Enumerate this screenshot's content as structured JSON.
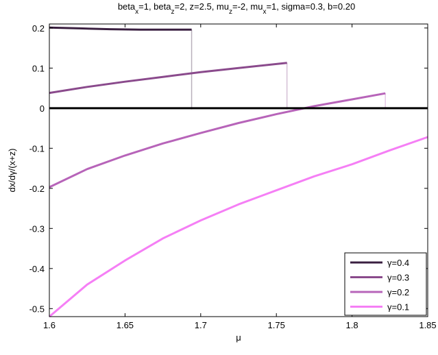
{
  "chart_data": {
    "type": "line",
    "title": "beta_x=1, beta_z=2, z=2.5, mu_z=-2, mu_x=1, sigma=0.3, b=0.20",
    "title_parts": [
      {
        "t": "beta",
        "sub": "x"
      },
      {
        "t": "=1, beta",
        "sub": "z"
      },
      {
        "t": "=2, z=2.5, mu",
        "sub": "z"
      },
      {
        "t": "=-2, mu",
        "sub": "x"
      },
      {
        "t": "=1, sigma=0.3, b=0.20",
        "sub": ""
      }
    ],
    "xlabel": "μ",
    "ylabel": "dx/dγ/(x+z)",
    "xlim": [
      1.6,
      1.85
    ],
    "ylim": [
      -0.52,
      0.21
    ],
    "x_ticks": [
      "1.6",
      "1.65",
      "1.7",
      "1.75",
      "1.8",
      "1.85"
    ],
    "y_ticks": [
      "0.2",
      "0.1",
      "0",
      "-0.1",
      "-0.2",
      "-0.3",
      "-0.4",
      "-0.5"
    ],
    "grid": false,
    "legend_position": "bottom-right",
    "zero_line": 0,
    "series": [
      {
        "name": "γ=0.4",
        "color": "#3a1f40",
        "x": [
          1.6,
          1.62,
          1.64,
          1.66,
          1.68,
          1.694
        ],
        "y": [
          0.201,
          0.199,
          0.197,
          0.196,
          0.196,
          0.196
        ],
        "drop_to": -0.003
      },
      {
        "name": "γ=0.3",
        "color": "#8a4a8c",
        "x": [
          1.6,
          1.625,
          1.65,
          1.675,
          1.7,
          1.725,
          1.757
        ],
        "y": [
          0.038,
          0.053,
          0.066,
          0.078,
          0.09,
          0.1,
          0.113
        ],
        "drop_to": -0.003
      },
      {
        "name": "γ=0.2",
        "color": "#b764b9",
        "x": [
          1.6,
          1.625,
          1.65,
          1.675,
          1.7,
          1.725,
          1.75,
          1.775,
          1.8,
          1.822
        ],
        "y": [
          -0.197,
          -0.152,
          -0.118,
          -0.088,
          -0.062,
          -0.037,
          -0.015,
          0.005,
          0.022,
          0.037
        ],
        "drop_to": -0.003
      },
      {
        "name": "γ=0.1",
        "color": "#f57ff5",
        "x": [
          1.6,
          1.625,
          1.65,
          1.675,
          1.7,
          1.725,
          1.75,
          1.775,
          1.8,
          1.825,
          1.85
        ],
        "y": [
          -0.52,
          -0.44,
          -0.38,
          -0.325,
          -0.28,
          -0.24,
          -0.205,
          -0.17,
          -0.14,
          -0.105,
          -0.072
        ]
      }
    ]
  }
}
